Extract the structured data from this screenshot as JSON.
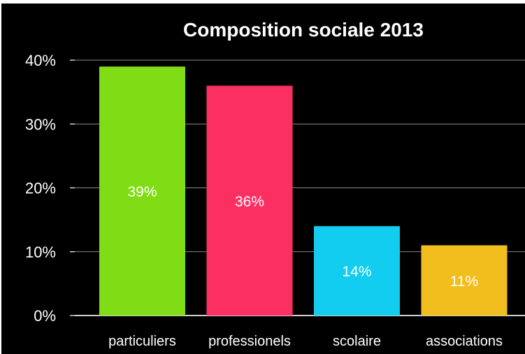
{
  "chart_data": {
    "type": "bar",
    "title": "Composition sociale 2013",
    "categories": [
      "particuliers",
      "professionels",
      "scolaire",
      "associations"
    ],
    "values": [
      39,
      36,
      14,
      11
    ],
    "value_labels": [
      "39%",
      "36%",
      "14%",
      "11%"
    ],
    "colors": [
      "#80dc14",
      "#fb2f62",
      "#12cdef",
      "#f2be1d"
    ],
    "ylim": [
      0,
      40
    ],
    "yticks": [
      0,
      10,
      20,
      30,
      40
    ],
    "ytick_labels": [
      "0%",
      "10%",
      "20%",
      "30%",
      "40%"
    ],
    "grid": true,
    "background": "#000000"
  }
}
